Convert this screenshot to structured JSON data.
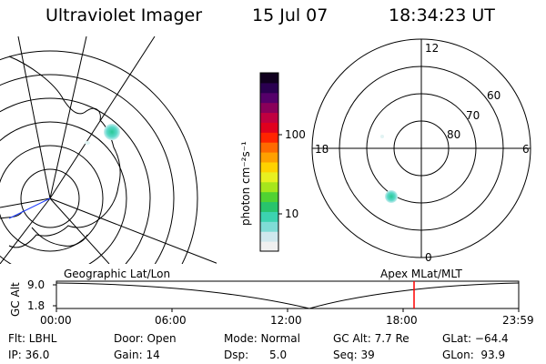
{
  "header": {
    "title": "Ultraviolet Imager",
    "date": "15 Jul 07",
    "time": "18:34:23 UT"
  },
  "geo_panel": {
    "label": "Geographic Lat/Lon"
  },
  "mag_panel": {
    "label": "Apex  MLat/MLT",
    "mlt_labels": [
      "12",
      "18",
      "6",
      "0"
    ],
    "lat_labels": [
      "60",
      "70",
      "80"
    ]
  },
  "colorbar": {
    "unit_label": "photon cm⁻²s⁻¹",
    "ticks": [
      "100",
      "10"
    ],
    "colors": [
      "#f0f0f0",
      "#cfe8ee",
      "#7fdcd6",
      "#3cd3b0",
      "#28c46c",
      "#50d232",
      "#a6e61c",
      "#e8f020",
      "#ffd200",
      "#ffa000",
      "#ff6a00",
      "#ff2400",
      "#e0001e",
      "#c00040",
      "#8a005a",
      "#55006a",
      "#2a0050",
      "#10001e"
    ],
    "scale": "log"
  },
  "altitude_plot": {
    "ylabel": "GC Alt",
    "y_ticks": [
      "9.0",
      "1.8"
    ],
    "x_ticks": [
      "00:00",
      "06:00",
      "12:00",
      "18:00",
      "23:59"
    ],
    "current_time_marker": "18:34",
    "marker_color": "#ff0000"
  },
  "footer": {
    "filter": "Flt: LBHL",
    "ip": "IP: 36.0",
    "door": "Door: Open",
    "gain": "Gain: 14",
    "mode": "Mode: Normal",
    "dsp": "Dsp:      5.0",
    "gc_alt": "GC Alt: 7.7 Re",
    "seq": "Seq: 39",
    "glat": "GLat: −64.4",
    "glon": "GLon:  93.9"
  }
}
